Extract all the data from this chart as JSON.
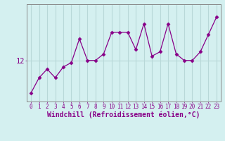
{
  "x": [
    0,
    1,
    2,
    3,
    4,
    5,
    6,
    7,
    8,
    9,
    10,
    11,
    12,
    13,
    14,
    15,
    16,
    17,
    18,
    19,
    20,
    21,
    22,
    23
  ],
  "y": [
    10.5,
    11.2,
    11.6,
    11.2,
    11.7,
    11.9,
    13.0,
    12.0,
    12.0,
    12.3,
    13.3,
    13.3,
    13.3,
    12.5,
    13.7,
    12.2,
    12.4,
    13.7,
    12.3,
    12.0,
    12.0,
    12.4,
    13.2,
    14.0
  ],
  "line_color": "#880088",
  "marker": "D",
  "marker_size": 2.5,
  "xlabel": "Windchill (Refroidissement éolien,°C)",
  "ytick_labels": [
    "12"
  ],
  "ytick_vals": [
    12
  ],
  "xlim": [
    -0.5,
    23.5
  ],
  "ylim": [
    10.1,
    14.6
  ],
  "bg_color": "#d4f0f0",
  "grid_color": "#b8d8d8",
  "line_color_spine": "#888888",
  "xlabel_fontsize": 7.0,
  "xtick_fontsize": 5.5,
  "ytick_fontsize": 7.5
}
